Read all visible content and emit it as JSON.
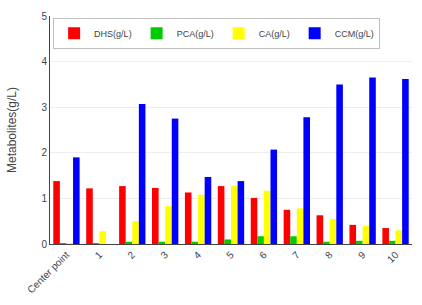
{
  "chart_data": {
    "type": "bar",
    "categories": [
      "Center point",
      "1",
      "2",
      "3",
      "4",
      "5",
      "6",
      "7",
      "8",
      "9",
      "10"
    ],
    "series": [
      {
        "name": "DHS(g/L)",
        "color": "#FF0000",
        "values": [
          1.38,
          1.22,
          1.27,
          1.23,
          1.13,
          1.27,
          1.01,
          0.75,
          0.63,
          0.42,
          0.35
        ]
      },
      {
        "name": "PCA(g/L)",
        "color": "#00CC00",
        "values": [
          0.02,
          0.02,
          0.05,
          0.05,
          0.05,
          0.1,
          0.17,
          0.17,
          0.05,
          0.07,
          0.07
        ]
      },
      {
        "name": "CA(g/L)",
        "color": "#FFFF00",
        "values": [
          0.02,
          0.28,
          0.5,
          0.83,
          1.08,
          1.28,
          1.17,
          0.78,
          0.55,
          0.4,
          0.3
        ]
      },
      {
        "name": "CCM(g/L)",
        "color": "#0000FF",
        "values": [
          1.9,
          0.0,
          3.07,
          2.75,
          1.47,
          1.38,
          2.07,
          2.78,
          3.5,
          3.65,
          3.62
        ]
      }
    ],
    "ylabel": "Metabolites(g/L)",
    "ylim": [
      0,
      5
    ],
    "yticks": [
      0,
      1,
      2,
      3,
      4,
      5
    ],
    "grid": true,
    "legend": "upper left"
  }
}
